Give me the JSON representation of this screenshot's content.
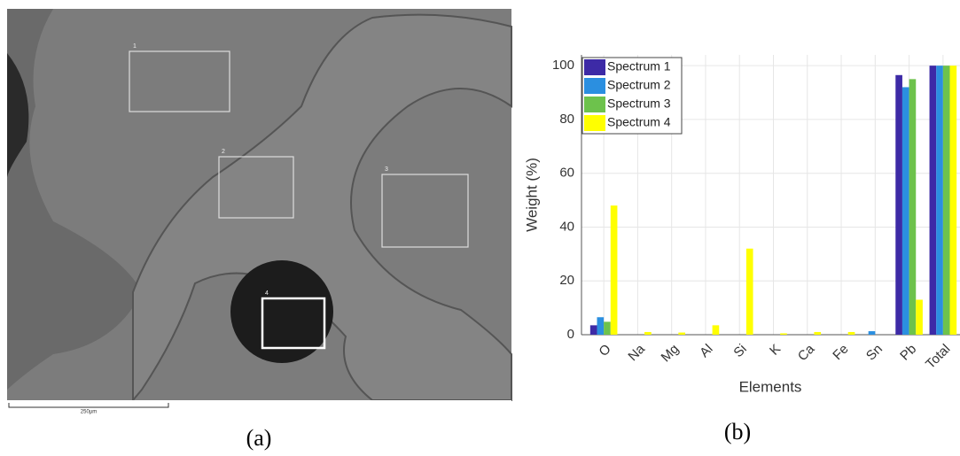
{
  "image_panel": {
    "region_labels": [
      "1",
      "2",
      "3",
      "4"
    ],
    "scale_bar": "250µm",
    "caption": "(a)"
  },
  "chart_caption": "(b)",
  "chart_data": {
    "type": "bar",
    "x_label": "Elements",
    "y_label": "Weight (%)",
    "categories": [
      "O",
      "Na",
      "Mg",
      "Al",
      "Si",
      "K",
      "Ca",
      "Fe",
      "Sn",
      "Pb",
      "Total"
    ],
    "series": [
      {
        "name": "Spectrum 1",
        "color": "#3d2aa6",
        "values": [
          3.5,
          0,
          0,
          0,
          0,
          0,
          0,
          0,
          0,
          96.5,
          100
        ]
      },
      {
        "name": "Spectrum 2",
        "color": "#2b8fe0",
        "values": [
          6.5,
          0,
          0,
          0,
          0,
          0,
          0,
          0,
          1.3,
          92,
          100
        ]
      },
      {
        "name": "Spectrum 3",
        "color": "#6dc24c",
        "values": [
          4.8,
          0,
          0,
          0,
          0,
          0,
          0,
          0,
          0,
          95,
          100
        ]
      },
      {
        "name": "Spectrum 4",
        "color": "#ffff00",
        "values": [
          48,
          1,
          0.8,
          3.5,
          32,
          0.5,
          1,
          1,
          0,
          13,
          100
        ]
      }
    ],
    "ylim": [
      0,
      104
    ],
    "yticks": [
      0,
      20,
      40,
      60,
      80,
      100
    ],
    "grid": true,
    "legend": "top-left"
  }
}
